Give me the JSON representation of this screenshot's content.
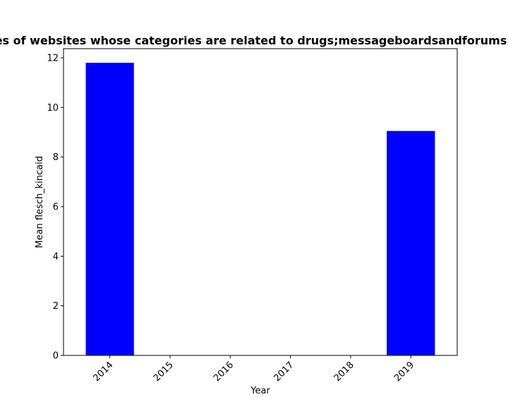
{
  "chart_data": {
    "type": "bar",
    "title": "Mean flesch_kincaid in privacy policies of websites whose categories are related to drugs;messageboardsandforums Mean flesch_kincaid in privacy policies",
    "xlabel": "Year",
    "ylabel": "Mean flesch_kincaid",
    "categories": [
      "2014",
      "2015",
      "2016",
      "2017",
      "2018",
      "2019"
    ],
    "values": [
      11.8,
      0,
      0,
      0,
      0,
      9.05
    ],
    "ylim": [
      0,
      12.37
    ],
    "yticks": [
      0,
      2,
      4,
      6,
      8,
      10,
      12
    ],
    "bar_color": "#0000ff",
    "grid": false,
    "x_tick_rotation_degrees": 45
  }
}
